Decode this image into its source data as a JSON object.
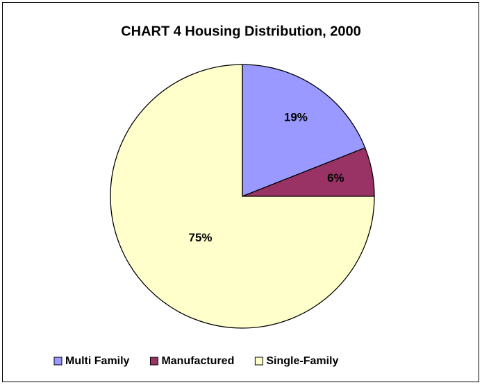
{
  "chart_data": {
    "type": "pie",
    "title": "CHART 4 Housing Distribution, 2000",
    "categories": [
      "Multi Family",
      "Manufactured",
      "Single-Family"
    ],
    "values": [
      19,
      6,
      75
    ],
    "value_labels": [
      "19%",
      "6%",
      "75%"
    ],
    "colors": [
      "#9999ff",
      "#993366",
      "#ffffcc"
    ],
    "legend": "bottom"
  }
}
